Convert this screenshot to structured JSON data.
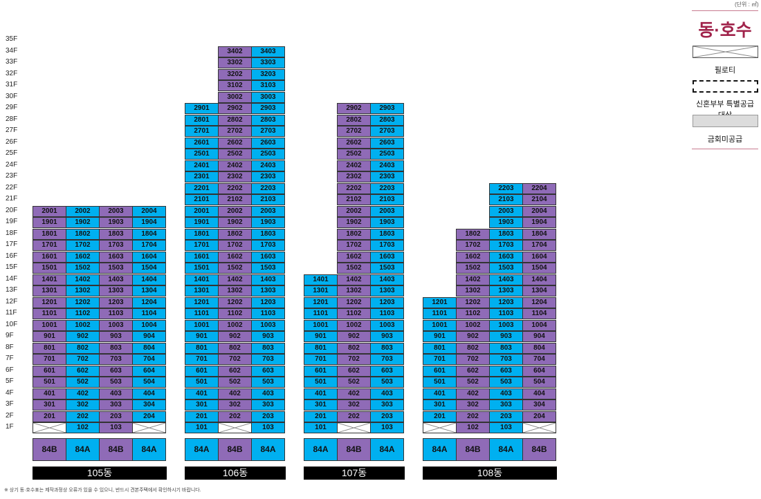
{
  "unit_note": "(단위 : ㎡)",
  "legend": {
    "title": "동·호수",
    "pilotis": "필로티",
    "newlywed": "신혼부부 특별공급 대상",
    "excluded": "금회미공급"
  },
  "footnote": "※ 상기 동·호수표는 제작과정상 오류가 있을 수 있으니, 반드시 견본주택에서 확인하시기 바랍니다.",
  "floors": [
    "1F",
    "2F",
    "3F",
    "4F",
    "5F",
    "6F",
    "7F",
    "8F",
    "9F",
    "10F",
    "11F",
    "12F",
    "13F",
    "14F",
    "15F",
    "16F",
    "17F",
    "18F",
    "19F",
    "20F",
    "21F",
    "22F",
    "23F",
    "24F",
    "25F",
    "26F",
    "27F",
    "28F",
    "29F",
    "30F",
    "31F",
    "32F",
    "33F",
    "34F",
    "35F"
  ],
  "colors": {
    "type_84A": "#00b0f0",
    "type_84B": "#8f6bb7"
  },
  "buildings": [
    {
      "name": "105동",
      "lines": [
        {
          "unit": "01",
          "type": "84B",
          "pilotis": [
            1
          ],
          "max_floor": 20
        },
        {
          "unit": "02",
          "type": "84A",
          "pilotis": [],
          "max_floor": 20
        },
        {
          "unit": "03",
          "type": "84B",
          "pilotis": [],
          "max_floor": 20
        },
        {
          "unit": "04",
          "type": "84A",
          "pilotis": [
            1
          ],
          "max_floor": 20
        }
      ]
    },
    {
      "name": "106동",
      "lines": [
        {
          "unit": "01",
          "type": "84A",
          "pilotis": [],
          "max_floor": 29
        },
        {
          "unit": "02",
          "type": "84B",
          "pilotis": [
            1
          ],
          "max_floor": 34
        },
        {
          "unit": "03",
          "type": "84A",
          "pilotis": [],
          "max_floor": 34
        }
      ]
    },
    {
      "name": "107동",
      "lines": [
        {
          "unit": "01",
          "type": "84A",
          "pilotis": [],
          "max_floor": 14
        },
        {
          "unit": "02",
          "type": "84B",
          "pilotis": [
            1
          ],
          "max_floor": 29
        },
        {
          "unit": "03",
          "type": "84A",
          "pilotis": [],
          "max_floor": 29
        }
      ]
    },
    {
      "name": "108동",
      "lines": [
        {
          "unit": "01",
          "type": "84A",
          "pilotis": [
            1
          ],
          "max_floor": 12
        },
        {
          "unit": "02",
          "type": "84B",
          "pilotis": [],
          "max_floor": 18
        },
        {
          "unit": "03",
          "type": "84A",
          "pilotis": [],
          "max_floor": 22
        },
        {
          "unit": "04",
          "type": "84B",
          "pilotis": [
            1
          ],
          "max_floor": 22
        }
      ]
    }
  ]
}
